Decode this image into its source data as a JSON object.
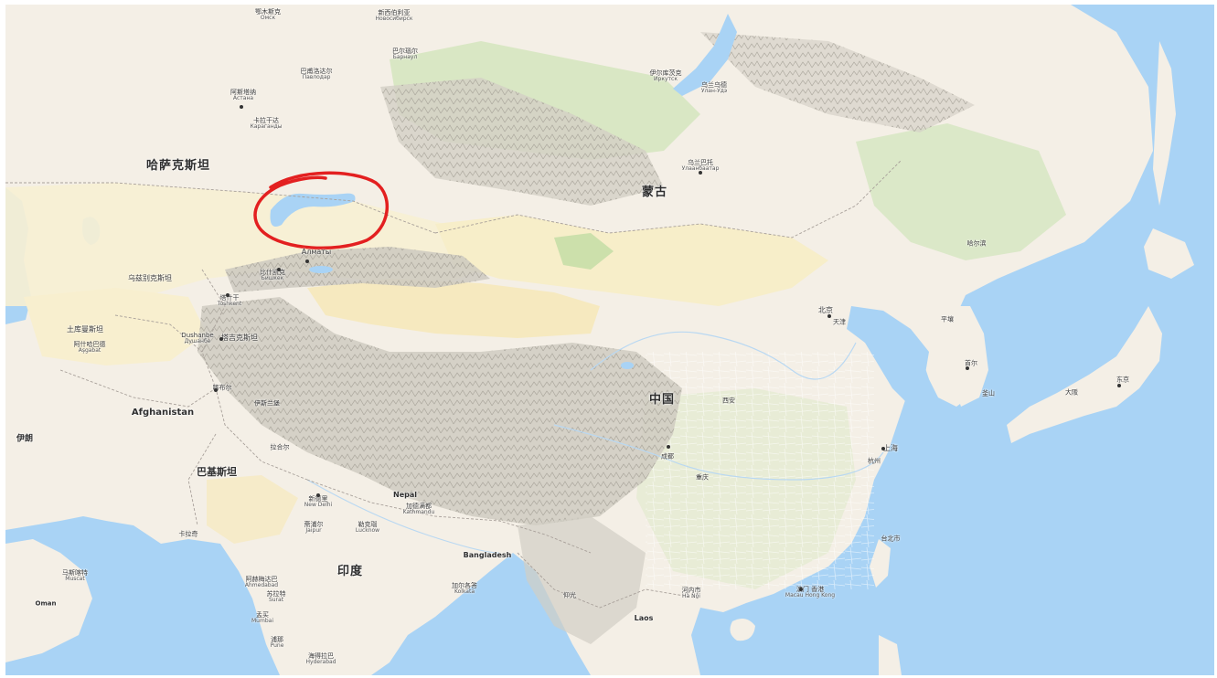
{
  "map": {
    "colors": {
      "water": "#a9d3f5",
      "land": "#f4efe6",
      "desert": "#f6edc9",
      "green": "#c8dfb0",
      "mountain": "#b8b4ab",
      "annotation": "#e32020"
    },
    "countries": [
      {
        "id": "kazakhstan",
        "name": "哈萨克斯坦"
      },
      {
        "id": "mongolia",
        "name": "蒙古"
      },
      {
        "id": "china",
        "name": "中国"
      },
      {
        "id": "india",
        "name": "印度"
      },
      {
        "id": "pakistan",
        "name": "巴基斯坦"
      },
      {
        "id": "afghanistan",
        "name": "Afghanistan"
      },
      {
        "id": "iran",
        "name": "伊朗"
      },
      {
        "id": "uzbekistan",
        "name": "乌兹别克斯坦"
      },
      {
        "id": "turkmenistan",
        "name": "土库曼斯坦"
      },
      {
        "id": "tajikistan",
        "name": "塔吉克斯坦"
      },
      {
        "id": "bangladesh",
        "name": "Bangladesh"
      },
      {
        "id": "nepal",
        "name": "Nepal"
      },
      {
        "id": "laos",
        "name": "Laos"
      },
      {
        "id": "oman",
        "name": "Oman"
      }
    ],
    "cities": [
      {
        "id": "astana",
        "name": "阿斯塔纳",
        "sub": "Астана"
      },
      {
        "id": "karaganda",
        "name": "卡拉干达",
        "sub": "Караганды"
      },
      {
        "id": "pavlodar",
        "name": "巴甫洛达尔",
        "sub": "Павлодар"
      },
      {
        "id": "omsk",
        "name": "鄂木斯克",
        "sub": "Омск"
      },
      {
        "id": "novosibirsk",
        "name": "新西伯利亚",
        "sub": "Новосибирск"
      },
      {
        "id": "barnaul",
        "name": "巴尔瑙尔",
        "sub": "Барнаул"
      },
      {
        "id": "irkutsk",
        "name": "伊尔库茨克",
        "sub": "Иркутск"
      },
      {
        "id": "ulan-ude",
        "name": "乌兰乌德",
        "sub": "Улан-Удэ"
      },
      {
        "id": "ulaanbaatar",
        "name": "乌兰巴托",
        "sub": "Улаанбаатар"
      },
      {
        "id": "almaty",
        "name": "Алматы",
        "sub": ""
      },
      {
        "id": "bishkek",
        "name": "比什凯克",
        "sub": "Бишкек"
      },
      {
        "id": "tashkent",
        "name": "塔什干",
        "sub": "Toshkent"
      },
      {
        "id": "dushanbe",
        "name": "Dushanbe",
        "sub": "Душанбе"
      },
      {
        "id": "ashgabat",
        "name": "阿什哈巴德",
        "sub": "Aşgabat"
      },
      {
        "id": "kabul",
        "name": "喀布尔",
        "sub": ""
      },
      {
        "id": "islamabad",
        "name": "伊斯兰堡",
        "sub": ""
      },
      {
        "id": "lahore",
        "name": "拉合尔",
        "sub": ""
      },
      {
        "id": "new-delhi",
        "name": "新德里",
        "sub": "New Delhi"
      },
      {
        "id": "jaipur",
        "name": "斋浦尔",
        "sub": "Jaipur"
      },
      {
        "id": "lucknow",
        "name": "勒克瑙",
        "sub": "Lucknow"
      },
      {
        "id": "karachi",
        "name": "卡拉奇",
        "sub": ""
      },
      {
        "id": "ahmedabad",
        "name": "阿赫梅达巴",
        "sub": "Ahmedabad"
      },
      {
        "id": "surat",
        "name": "苏拉特",
        "sub": "Surat"
      },
      {
        "id": "mumbai",
        "name": "孟买",
        "sub": "Mumbai"
      },
      {
        "id": "pune",
        "name": "浦那",
        "sub": "Pune"
      },
      {
        "id": "hyderabad",
        "name": "海得拉巴",
        "sub": "Hyderabad"
      },
      {
        "id": "kolkata",
        "name": "加尔各答",
        "sub": "Kolkata"
      },
      {
        "id": "kathmandu",
        "name": "加德满都",
        "sub": "Kathmandu"
      },
      {
        "id": "muscat",
        "name": "马斯喀特",
        "sub": "Muscat"
      },
      {
        "id": "beijing",
        "name": "北京",
        "sub": ""
      },
      {
        "id": "tianjin",
        "name": "天津",
        "sub": ""
      },
      {
        "id": "shanghai",
        "name": "上海",
        "sub": ""
      },
      {
        "id": "hangzhou",
        "name": "杭州",
        "sub": ""
      },
      {
        "id": "xian",
        "name": "西安",
        "sub": ""
      },
      {
        "id": "chengdu",
        "name": "成都",
        "sub": ""
      },
      {
        "id": "chongqing",
        "name": "重庆",
        "sub": ""
      },
      {
        "id": "harbin",
        "name": "哈尔滨",
        "sub": ""
      },
      {
        "id": "pyongyang",
        "name": "平壤",
        "sub": ""
      },
      {
        "id": "seoul",
        "name": "首尔",
        "sub": ""
      },
      {
        "id": "busan",
        "name": "釜山",
        "sub": ""
      },
      {
        "id": "tokyo",
        "name": "东京",
        "sub": ""
      },
      {
        "id": "osaka",
        "name": "大阪",
        "sub": ""
      },
      {
        "id": "taipei",
        "name": "台北市",
        "sub": ""
      },
      {
        "id": "hong-kong",
        "name": "澳门 香港",
        "sub": "Macau Hong Kong"
      },
      {
        "id": "hanoi",
        "name": "河内市",
        "sub": "Hà Nội"
      },
      {
        "id": "yangon",
        "name": "仰光",
        "sub": ""
      }
    ],
    "annotation": {
      "id": "balkhash-circle",
      "label": "red hand-drawn circle"
    }
  }
}
